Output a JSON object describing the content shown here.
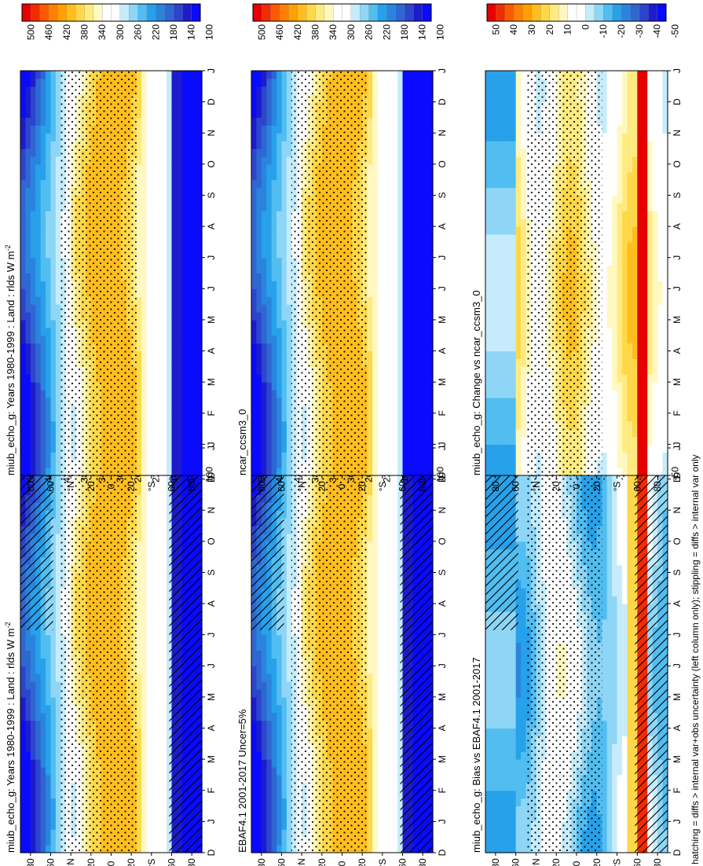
{
  "footnote": "hatching = diffs > internal var+obs uncertainty (left column only); stippling = diffs > internal var only",
  "colors": {
    "absolute_scale": [
      "#e60000",
      "#f22b00",
      "#fb5a00",
      "#ff7f00",
      "#ffa000",
      "#ffbe1e",
      "#ffd84a",
      "#ffeb82",
      "#fff8c0",
      "#ffffff",
      "#ffffff",
      "#c6ecfb",
      "#8fd6f6",
      "#52bdf0",
      "#27a1ea",
      "#2a84dd",
      "#2f66d2",
      "#2c45cc",
      "#1c1ccc",
      "#0a0aff"
    ],
    "diff_scale": [
      "#e60000",
      "#f22b00",
      "#fb5a00",
      "#ff7f00",
      "#ffa000",
      "#ffbe1e",
      "#ffd84a",
      "#ffeb82",
      "#fff8c0",
      "#ffffff",
      "#ffffff",
      "#c6ecfb",
      "#8fd6f6",
      "#52bdf0",
      "#27a1ea",
      "#2a84dd",
      "#2f66d2",
      "#2c45cc",
      "#1c1ccc",
      "#0a0aff"
    ]
  },
  "axis_labels": {
    "months": [
      "D",
      "J",
      "F",
      "M",
      "A",
      "M",
      "J",
      "J",
      "A",
      "S",
      "O",
      "N",
      "D",
      "J"
    ],
    "lat": [
      "80",
      "60",
      "°N",
      "20",
      "0",
      "20",
      "°S",
      "60",
      "80"
    ]
  },
  "colorbars": {
    "absolute": [
      "500",
      "460",
      "420",
      "380",
      "340",
      "300",
      "260",
      "220",
      "180",
      "140",
      "100"
    ],
    "diff": [
      "50",
      "40",
      "30",
      "20",
      "10",
      "0",
      "-10",
      "-20",
      "-30",
      "-40",
      "-50"
    ]
  },
  "chart_data": [
    {
      "type": "heatmap",
      "panel": "top-left",
      "title": "miub_echo_g: Years 1980-1999 : Land : rlds W m",
      "title_sup": "-2",
      "variant": "absolute",
      "hatch": "abs_left",
      "stipple": true,
      "x": [
        "D",
        "J",
        "F",
        "M",
        "A",
        "M",
        "J",
        "J",
        "A",
        "S",
        "O",
        "N",
        "D",
        "J"
      ],
      "y": [
        90,
        60,
        30,
        0,
        -30,
        -60,
        -90
      ]
    },
    {
      "type": "heatmap",
      "panel": "top-right",
      "title": "miub_echo_g: Years 1980-1999 : Land : rlds W m",
      "title_sup": "-2",
      "variant": "absolute",
      "hatch": null,
      "stipple": true,
      "x": [
        "D",
        "J",
        "F",
        "M",
        "A",
        "M",
        "J",
        "J",
        "A",
        "S",
        "O",
        "N",
        "D",
        "J"
      ],
      "y": [
        90,
        60,
        30,
        0,
        -30,
        -60,
        -90
      ]
    },
    {
      "type": "heatmap",
      "panel": "mid-left",
      "title": "EBAF4.1 2001-2017 Uncer=5%",
      "title_sup": "",
      "variant": "absolute",
      "hatch": "abs_left",
      "stipple": true,
      "x": [
        "D",
        "J",
        "F",
        "M",
        "A",
        "M",
        "J",
        "J",
        "A",
        "S",
        "O",
        "N",
        "D",
        "J"
      ],
      "y": [
        90,
        60,
        30,
        0,
        -30,
        -60,
        -90
      ]
    },
    {
      "type": "heatmap",
      "panel": "mid-right",
      "title": "ncar_ccsm3_0",
      "title_sup": "",
      "variant": "absolute",
      "hatch": null,
      "stipple": true,
      "x": [
        "D",
        "J",
        "F",
        "M",
        "A",
        "M",
        "J",
        "J",
        "A",
        "S",
        "O",
        "N",
        "D",
        "J"
      ],
      "y": [
        90,
        60,
        30,
        0,
        -30,
        -60,
        -90
      ]
    },
    {
      "type": "heatmap",
      "panel": "bottom-left",
      "title": "miub_echo_g: Bias vs EBAF4.1 2001-2017",
      "title_sup": "",
      "variant": "bias",
      "hatch": "bias",
      "stipple": true,
      "x": [
        "D",
        "J",
        "F",
        "M",
        "A",
        "M",
        "J",
        "J",
        "A",
        "S",
        "O",
        "N",
        "D",
        "J"
      ],
      "y": [
        90,
        60,
        30,
        0,
        -30,
        -60,
        -90
      ]
    },
    {
      "type": "heatmap",
      "panel": "bottom-right",
      "title": "miub_echo_g: Change vs ncar_ccsm3_0",
      "title_sup": "",
      "variant": "change",
      "hatch": null,
      "stipple": true,
      "x": [
        "D",
        "J",
        "F",
        "M",
        "A",
        "M",
        "J",
        "J",
        "A",
        "S",
        "O",
        "N",
        "D",
        "J"
      ],
      "y": [
        90,
        60,
        30,
        0,
        -30,
        -60,
        -90
      ]
    }
  ]
}
